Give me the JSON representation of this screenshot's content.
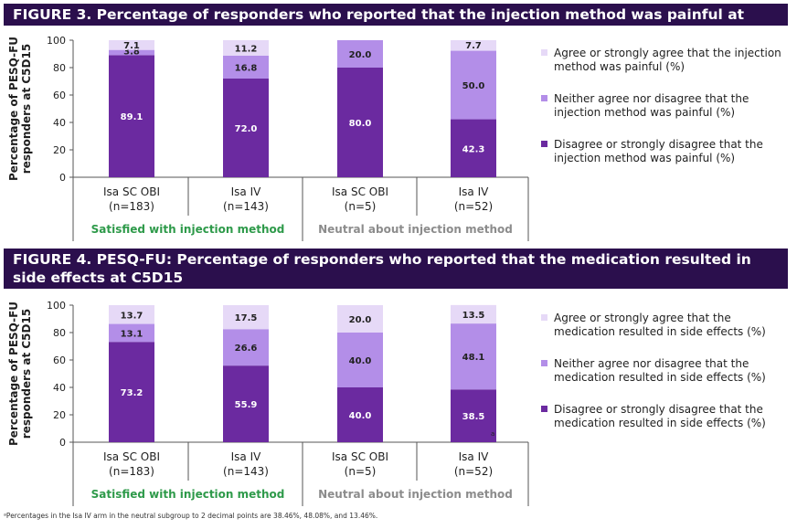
{
  "figures": [
    {
      "title": "FIGURE 3. Percentage of responders who reported that the injection method was painful at C5D15"
    },
    {
      "title": "FIGURE 4. PESQ-FU: Percentage of responders who reported that the medication resulted in side effects at C5D15"
    }
  ],
  "footnote": "ᵃPercentages in the Isa IV arm in the neutral subgroup to 2 decimal points are 38.46%, 48.08%, and 13.46%.",
  "colors": {
    "disagree": "#6b2aa0",
    "neither": "#b38ee8",
    "agree": "#e6d9f7",
    "satisfied_label": "#2e9a4a",
    "neutral_label": "#8c8c8c",
    "title_bg": "#2b0f4d"
  },
  "chart_data": [
    {
      "type": "bar",
      "stacked": true,
      "ylabel": [
        "Percentage of PESQ-FU",
        "responders at C5D15"
      ],
      "ylim": [
        0,
        100
      ],
      "yticks": [
        0,
        20,
        40,
        60,
        80,
        100
      ],
      "categories": [
        {
          "name": "Isa SC OBI",
          "n": "(n=183)",
          "group": "Satisfied with injection method"
        },
        {
          "name": "Isa IV",
          "n": "(n=143)",
          "group": "Satisfied with injection method"
        },
        {
          "name": "Isa SC OBI",
          "n": "(n=5)",
          "group": "Neutral about injection method"
        },
        {
          "name": "Isa IV",
          "n": "(n=52)",
          "group": "Neutral about injection method"
        }
      ],
      "groups": [
        {
          "label": "Satisfied with injection method",
          "color_key": "satisfied_label"
        },
        {
          "label": "Neutral about injection method",
          "color_key": "neutral_label"
        }
      ],
      "series": [
        {
          "name": "Disagree or strongly disagree that the injection method was painful (%)",
          "legend_lines": [
            "Disagree or strongly disagree that the",
            "injection method was painful (%)"
          ],
          "color_key": "disagree",
          "values": [
            89.1,
            72.0,
            80.0,
            42.3
          ],
          "labels": [
            "89.1",
            "72.0",
            "80.0",
            "42.3"
          ]
        },
        {
          "name": "Neither agree nor disagree that the injection method was painful (%)",
          "legend_lines": [
            "Neither agree nor disagree that the",
            "injection method was painful (%)"
          ],
          "color_key": "neither",
          "values": [
            3.8,
            16.8,
            20.0,
            50.0
          ],
          "labels": [
            "3.8",
            "16.8",
            "20.0",
            "50.0"
          ]
        },
        {
          "name": "Agree or strongly agree that the injection method was painful (%)",
          "legend_lines": [
            "Agree or strongly agree that the injection",
            "method was painful (%)"
          ],
          "color_key": "agree",
          "values": [
            7.1,
            11.2,
            0,
            7.7
          ],
          "labels": [
            "7.1",
            "11.2",
            "",
            "7.7"
          ]
        }
      ],
      "legend_position": "right"
    },
    {
      "type": "bar",
      "stacked": true,
      "ylabel": [
        "Percentage of PESQ-FU",
        "responders at C5D15"
      ],
      "ylim": [
        0,
        100
      ],
      "yticks": [
        0,
        20,
        40,
        60,
        80,
        100
      ],
      "categories": [
        {
          "name": "Isa SC OBI",
          "n": "(n=183)",
          "group": "Satisfied with injection method"
        },
        {
          "name": "Isa IV",
          "n": "(n=143)",
          "group": "Satisfied with injection method"
        },
        {
          "name": "Isa SC OBI",
          "n": "(n=5)",
          "group": "Neutral about injection method"
        },
        {
          "name": "Isa IV",
          "n": "(n=52)",
          "group": "Neutral about injection method"
        }
      ],
      "groups": [
        {
          "label": "Satisfied with injection method",
          "color_key": "satisfied_label"
        },
        {
          "label": "Neutral about injection method",
          "color_key": "neutral_label"
        }
      ],
      "series": [
        {
          "name": "Disagree or strongly disagree that the medication resulted in side effects (%)",
          "legend_lines": [
            "Disagree or strongly disagree that the",
            "medication resulted in side effects (%)"
          ],
          "color_key": "disagree",
          "values": [
            73.2,
            55.9,
            40.0,
            38.5
          ],
          "labels": [
            "73.2",
            "55.9",
            "40.0",
            "38.5"
          ]
        },
        {
          "name": "Neither agree nor disagree that the medication resulted in side effects (%)",
          "legend_lines": [
            "Neither agree nor disagree that the",
            "medication resulted in side effects (%)"
          ],
          "color_key": "neither",
          "values": [
            13.1,
            26.6,
            40.0,
            48.1
          ],
          "labels": [
            "13.1",
            "26.6",
            "40.0",
            "48.1"
          ]
        },
        {
          "name": "Agree or strongly agree that the medication resulted in side effects (%)",
          "legend_lines": [
            "Agree or strongly agree that the",
            "medication resulted in side effects (%)"
          ],
          "color_key": "agree",
          "values": [
            13.7,
            17.5,
            20.0,
            13.5
          ],
          "labels": [
            "13.7",
            "17.5",
            "20.0",
            "13.5"
          ]
        }
      ],
      "footnote_marker": "a",
      "legend_position": "right"
    }
  ]
}
